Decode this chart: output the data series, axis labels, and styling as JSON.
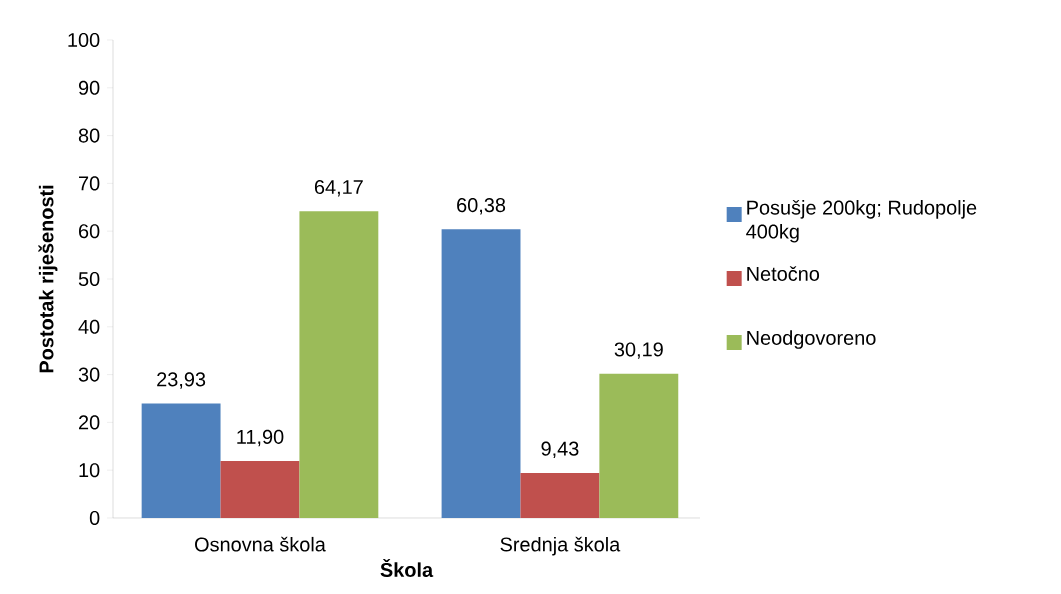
{
  "chart_data": {
    "type": "bar",
    "xlabel": "Škola",
    "ylabel": "Postotak riješenosti",
    "categories": [
      "Osnovna škola",
      "Srednja škola"
    ],
    "series": [
      {
        "name": "Posušje 200kg; Rudopolje 400kg",
        "color": "#4f81bd",
        "values": [
          23.93,
          60.38
        ],
        "value_labels": [
          "23,93",
          "60,38"
        ]
      },
      {
        "name": "Netočno",
        "color": "#c0504d",
        "values": [
          11.9,
          9.43
        ],
        "value_labels": [
          "11,90",
          "9,43"
        ]
      },
      {
        "name": "Neodgovoreno",
        "color": "#9bbb59",
        "values": [
          64.17,
          30.19
        ],
        "value_labels": [
          "64,17",
          "30,19"
        ]
      }
    ],
    "ylim": [
      0,
      100
    ],
    "yticks": [
      0,
      10,
      20,
      30,
      40,
      50,
      60,
      70,
      80,
      90,
      100
    ],
    "grid": false,
    "legend": "right"
  }
}
